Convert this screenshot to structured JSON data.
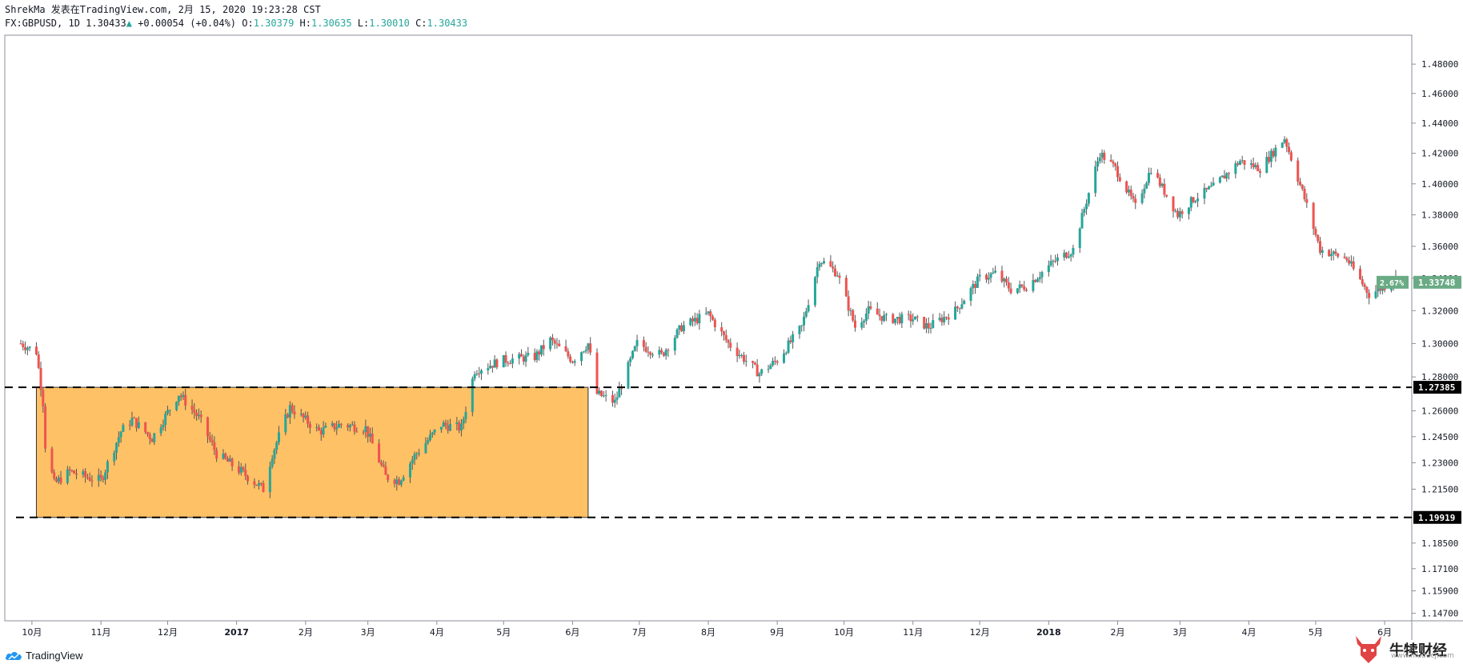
{
  "header": {
    "line1": "ShrekMa 发表在TradingView.com, 2月 15, 2020 19:23:28 CST",
    "symbol": "FX:GBPUSD, 1D",
    "last": "1.30433",
    "change": "+0.00054 (+0.04%)",
    "o_label": "O:",
    "o": "1.30379",
    "h_label": "H:",
    "h": "1.30635",
    "l_label": "L:",
    "l": "1.30010",
    "c_label": "C:",
    "c": "1.30433"
  },
  "footer": {
    "brand": "TradingView"
  },
  "watermark": {
    "name": "牛犊财经",
    "site": "www.niuducj.com"
  },
  "colors": {
    "up": "#26a69a",
    "down": "#ef5350",
    "box_fill": "#ffc166",
    "line": "#000000",
    "badge": "#6aab85"
  },
  "chart_data": {
    "type": "candlestick",
    "symbol": "FX:GBPUSD",
    "interval": "1D",
    "y_axis": {
      "ticks": [
        "1.48000",
        "1.46000",
        "1.44000",
        "1.42000",
        "1.40000",
        "1.38000",
        "1.36000",
        "1.34000",
        "1.32000",
        "1.30000",
        "1.28000",
        "1.26000",
        "1.24500",
        "1.23000",
        "1.21500",
        "1.18500",
        "1.17100",
        "1.15900",
        "1.14700"
      ],
      "scale": "log",
      "range": [
        1.143,
        1.5
      ],
      "position": "right"
    },
    "x_axis": {
      "labels": [
        "10月",
        "11月",
        "12月",
        "2017",
        "2月",
        "3月",
        "4月",
        "5月",
        "6月",
        "7月",
        "8月",
        "9月",
        "10月",
        "11月",
        "12月",
        "2018",
        "2月",
        "3月",
        "4月",
        "5月",
        "6月"
      ],
      "label_dates": [
        "2016-10-01",
        "2016-11-01",
        "2016-12-01",
        "2017-01-01",
        "2017-02-01",
        "2017-03-01",
        "2017-04-01",
        "2017-05-01",
        "2017-06-01",
        "2017-07-01",
        "2017-08-01",
        "2017-09-01",
        "2017-10-01",
        "2017-11-01",
        "2017-12-01",
        "2018-01-01",
        "2018-02-01",
        "2018-03-01",
        "2018-04-01",
        "2018-05-01",
        "2018-06-01"
      ],
      "range": [
        "2016-09-26",
        "2018-06-06"
      ]
    },
    "price_path": [
      [
        "2016-09-26",
        1.3
      ],
      [
        "2016-10-03",
        1.295
      ],
      [
        "2016-10-06",
        1.265
      ],
      [
        "2016-10-07",
        1.24
      ],
      [
        "2016-10-11",
        1.218
      ],
      [
        "2016-10-18",
        1.225
      ],
      [
        "2016-10-25",
        1.222
      ],
      [
        "2016-11-01",
        1.22
      ],
      [
        "2016-11-10",
        1.248
      ],
      [
        "2016-11-15",
        1.255
      ],
      [
        "2016-11-24",
        1.244
      ],
      [
        "2016-12-06",
        1.27
      ],
      [
        "2016-12-15",
        1.256
      ],
      [
        "2016-12-23",
        1.235
      ],
      [
        "2017-01-03",
        1.225
      ],
      [
        "2017-01-13",
        1.215
      ],
      [
        "2017-01-17",
        1.235
      ],
      [
        "2017-01-25",
        1.262
      ],
      [
        "2017-02-07",
        1.248
      ],
      [
        "2017-02-17",
        1.252
      ],
      [
        "2017-02-28",
        1.25
      ],
      [
        "2017-03-09",
        1.222
      ],
      [
        "2017-03-15",
        1.22
      ],
      [
        "2017-03-22",
        1.234
      ],
      [
        "2017-04-03",
        1.252
      ],
      [
        "2017-04-12",
        1.25
      ],
      [
        "2017-04-18",
        1.284
      ],
      [
        "2017-05-01",
        1.29
      ],
      [
        "2017-05-15",
        1.292
      ],
      [
        "2017-05-22",
        1.302
      ],
      [
        "2017-06-01",
        1.29
      ],
      [
        "2017-06-08",
        1.3
      ],
      [
        "2017-06-12",
        1.27
      ],
      [
        "2017-06-20",
        1.265
      ],
      [
        "2017-06-30",
        1.3
      ],
      [
        "2017-07-11",
        1.293
      ],
      [
        "2017-07-20",
        1.31
      ],
      [
        "2017-08-01",
        1.318
      ],
      [
        "2017-08-10",
        1.3
      ],
      [
        "2017-08-24",
        1.282
      ],
      [
        "2017-09-01",
        1.29
      ],
      [
        "2017-09-12",
        1.31
      ],
      [
        "2017-09-20",
        1.352
      ],
      [
        "2017-09-28",
        1.343
      ],
      [
        "2017-10-06",
        1.31
      ],
      [
        "2017-10-12",
        1.32
      ],
      [
        "2017-10-20",
        1.315
      ],
      [
        "2017-11-01",
        1.315
      ],
      [
        "2017-11-08",
        1.31
      ],
      [
        "2017-11-20",
        1.32
      ],
      [
        "2017-12-01",
        1.34
      ],
      [
        "2017-12-08",
        1.343
      ],
      [
        "2017-12-15",
        1.333
      ],
      [
        "2017-12-22",
        1.335
      ],
      [
        "2018-01-03",
        1.35
      ],
      [
        "2018-01-12",
        1.358
      ],
      [
        "2018-01-24",
        1.42
      ],
      [
        "2018-01-31",
        1.41
      ],
      [
        "2018-02-09",
        1.385
      ],
      [
        "2018-02-16",
        1.41
      ],
      [
        "2018-02-28",
        1.38
      ],
      [
        "2018-03-07",
        1.39
      ],
      [
        "2018-03-16",
        1.398
      ],
      [
        "2018-03-28",
        1.415
      ],
      [
        "2018-04-06",
        1.41
      ],
      [
        "2018-04-17",
        1.43
      ],
      [
        "2018-04-25",
        1.395
      ],
      [
        "2018-05-03",
        1.358
      ],
      [
        "2018-05-15",
        1.352
      ],
      [
        "2018-05-25",
        1.33
      ],
      [
        "2018-06-01",
        1.335
      ],
      [
        "2018-06-06",
        1.34
      ]
    ],
    "annotations": {
      "range_box": {
        "from": "2016-10-03",
        "to": "2017-06-08",
        "top": 1.27385,
        "bottom": 1.19919
      },
      "levels": [
        {
          "value": 1.27385,
          "label": "1.27385",
          "style": "dashed"
        },
        {
          "value": 1.19919,
          "label": "1.19919",
          "style": "dashed"
        }
      ],
      "last_price": {
        "value": 1.33748,
        "label": "1.33748",
        "pct": "2.67%"
      }
    },
    "grid": false
  }
}
